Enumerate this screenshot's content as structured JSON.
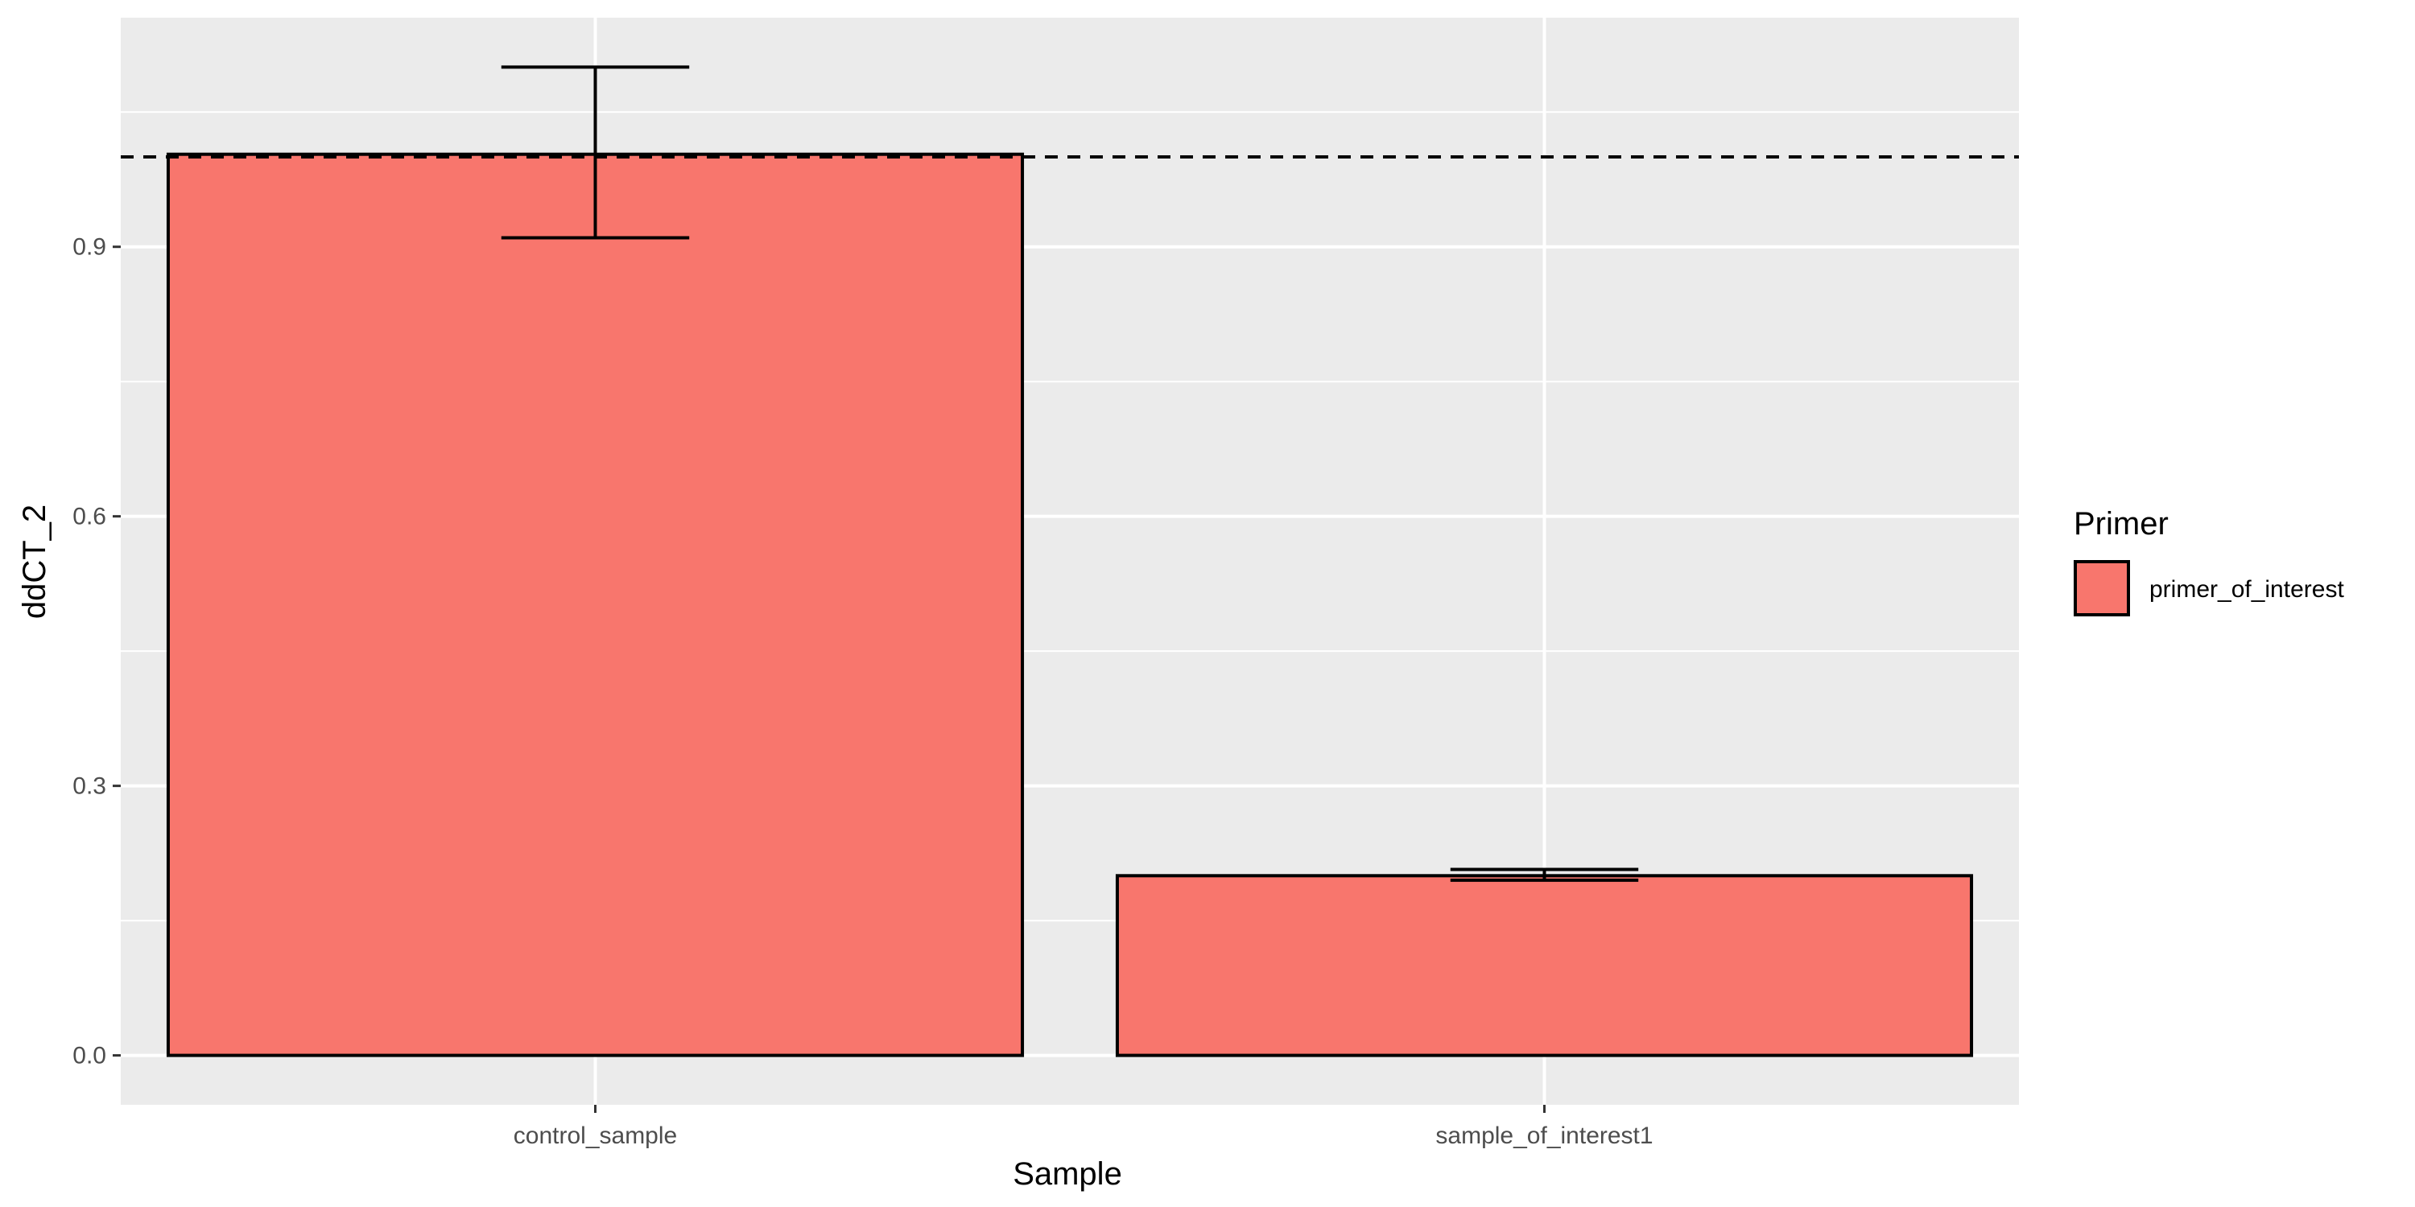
{
  "chart_data": {
    "type": "bar",
    "categories": [
      "control_sample",
      "sample_of_interest1"
    ],
    "series": [
      {
        "name": "primer_of_interest",
        "values": [
          1.003,
          0.2
        ],
        "error_low": [
          0.91,
          0.195
        ],
        "error_high": [
          1.1,
          0.207
        ]
      }
    ],
    "reference_line": {
      "y": 1.0,
      "style": "dashed"
    },
    "title": "",
    "xlabel": "Sample",
    "ylabel": "ddCT_2",
    "ylim": [
      -0.055,
      1.155
    ],
    "yticks": [
      0.0,
      0.3,
      0.6,
      0.9
    ],
    "ytick_labels": [
      "0.0",
      "0.3",
      "0.6",
      "0.9"
    ],
    "grid": true,
    "legend": {
      "title": "Primer",
      "entries": [
        "primer_of_interest"
      ],
      "position": "right"
    },
    "colors": {
      "bar_fill": "#F8766D",
      "bar_stroke": "#000000",
      "panel_background": "#EBEBEB",
      "gridline": "#FFFFFF"
    }
  }
}
